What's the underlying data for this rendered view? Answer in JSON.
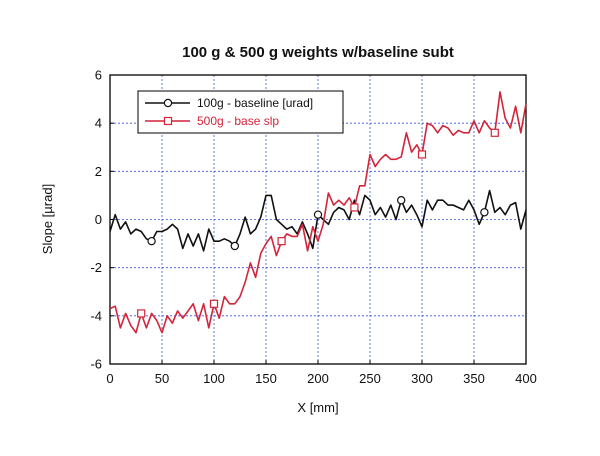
{
  "chart_data": {
    "type": "line",
    "title": "100 g & 500 g weights w/baseline subt",
    "xlabel": "X [mm]",
    "ylabel": "Slope [µrad]",
    "xlim": [
      0,
      400
    ],
    "ylim": [
      -6,
      6
    ],
    "xticks": [
      0,
      50,
      100,
      150,
      200,
      250,
      300,
      350,
      400
    ],
    "yticks": [
      -6,
      -4,
      -2,
      0,
      2,
      4,
      6
    ],
    "grid": true,
    "legend_position": "top-left",
    "series": [
      {
        "name": "100g - baseline [urad]",
        "color": "#111111",
        "marker": "circle",
        "x": [
          0,
          5,
          10,
          15,
          20,
          25,
          30,
          35,
          40,
          45,
          50,
          55,
          60,
          65,
          70,
          75,
          80,
          85,
          90,
          95,
          100,
          105,
          110,
          115,
          120,
          125,
          130,
          135,
          140,
          145,
          150,
          155,
          160,
          165,
          170,
          175,
          180,
          185,
          190,
          195,
          200,
          205,
          210,
          215,
          220,
          225,
          230,
          235,
          240,
          245,
          250,
          255,
          260,
          265,
          270,
          275,
          280,
          285,
          290,
          295,
          300,
          305,
          310,
          315,
          320,
          325,
          330,
          335,
          340,
          345,
          350,
          355,
          360,
          365,
          370,
          375,
          380,
          385,
          390,
          395,
          400
        ],
        "y": [
          -0.5,
          0.2,
          -0.4,
          -0.1,
          -0.6,
          -0.4,
          -0.5,
          -0.8,
          -0.9,
          -0.5,
          -0.5,
          -0.4,
          -0.2,
          -0.4,
          -1.2,
          -0.6,
          -1.1,
          -0.6,
          -1.3,
          -0.4,
          -0.9,
          -0.9,
          -0.8,
          -0.9,
          -1.1,
          -0.6,
          0.1,
          -0.6,
          -0.4,
          0.1,
          1.0,
          1.0,
          0.0,
          -0.2,
          -0.4,
          -0.3,
          -0.6,
          -0.1,
          -0.6,
          -1.2,
          0.2,
          0.0,
          -0.2,
          0.3,
          0.5,
          0.4,
          0.0,
          0.8,
          0.2,
          1.0,
          0.8,
          0.2,
          0.5,
          0.1,
          0.6,
          0.0,
          0.8,
          0.3,
          0.6,
          0.2,
          -0.3,
          0.8,
          0.4,
          0.8,
          0.8,
          0.6,
          0.6,
          0.5,
          0.4,
          0.8,
          0.4,
          -0.2,
          0.3,
          1.2,
          0.3,
          0.5,
          0.2,
          0.6,
          0.7,
          -0.4,
          0.4
        ],
        "marker_x": [
          40,
          120,
          200,
          280,
          360
        ]
      },
      {
        "name": "500g - base slp",
        "color": "#d4243a",
        "marker": "square",
        "x": [
          0,
          5,
          10,
          15,
          20,
          25,
          30,
          35,
          40,
          45,
          50,
          55,
          60,
          65,
          70,
          75,
          80,
          85,
          90,
          95,
          100,
          105,
          110,
          115,
          120,
          125,
          130,
          135,
          140,
          145,
          150,
          155,
          160,
          165,
          170,
          175,
          180,
          185,
          190,
          195,
          200,
          205,
          210,
          215,
          220,
          225,
          230,
          235,
          240,
          245,
          250,
          255,
          260,
          265,
          270,
          275,
          280,
          285,
          290,
          295,
          300,
          305,
          310,
          315,
          320,
          325,
          330,
          335,
          340,
          345,
          350,
          355,
          360,
          365,
          370,
          375,
          380,
          385,
          390,
          395,
          400
        ],
        "y": [
          -3.7,
          -3.6,
          -4.5,
          -3.9,
          -4.4,
          -4.7,
          -3.9,
          -4.5,
          -3.9,
          -4.2,
          -4.7,
          -4.0,
          -4.3,
          -3.8,
          -4.1,
          -3.8,
          -3.5,
          -4.2,
          -3.5,
          -4.5,
          -3.5,
          -4.1,
          -3.2,
          -3.5,
          -3.5,
          -3.2,
          -2.6,
          -1.8,
          -2.4,
          -1.4,
          -1.0,
          -0.7,
          -1.5,
          -0.9,
          -0.6,
          -0.7,
          -0.7,
          -0.2,
          -1.3,
          -0.3,
          -0.9,
          -0.2,
          1.1,
          0.6,
          0.8,
          0.6,
          0.9,
          0.5,
          1.4,
          1.4,
          2.7,
          2.2,
          2.5,
          2.7,
          2.5,
          2.5,
          2.6,
          3.6,
          2.8,
          3.1,
          2.7,
          4.0,
          3.9,
          3.6,
          3.9,
          3.8,
          3.5,
          3.7,
          3.6,
          3.6,
          4.1,
          3.6,
          4.1,
          3.8,
          3.6,
          5.3,
          4.2,
          3.8,
          4.7,
          3.6,
          4.8
        ],
        "marker_x": [
          30,
          100,
          165,
          235,
          300,
          370
        ]
      }
    ]
  }
}
